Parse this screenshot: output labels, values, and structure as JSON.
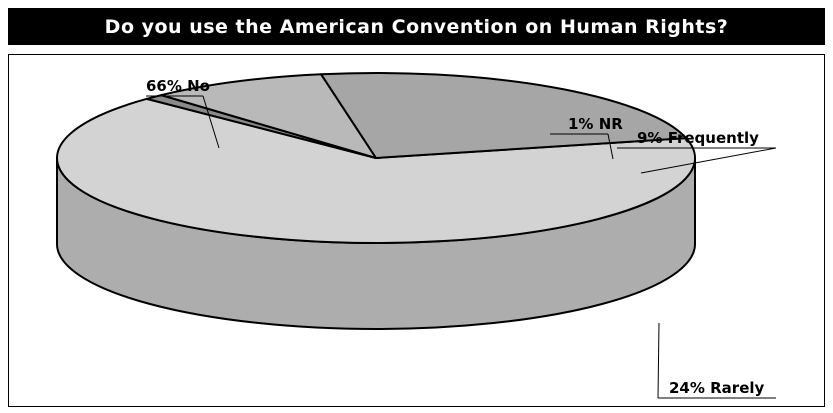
{
  "title": "Do you use the American Convention on Human Rights?",
  "chart_data": {
    "type": "pie",
    "style": "3d",
    "title": "Do you use the American Convention on Human Rights?",
    "slices": [
      {
        "key": "no",
        "label": "No",
        "value": 66,
        "display": "66% No",
        "color": "#d3d3d3"
      },
      {
        "key": "nr",
        "label": "NR",
        "value": 1,
        "display": "1% NR",
        "color": "#8a8a8a"
      },
      {
        "key": "frequently",
        "label": "Frequently",
        "value": 9,
        "display": "9% Frequently",
        "color": "#b9b9b9"
      },
      {
        "key": "rarely",
        "label": "Rarely",
        "value": 24,
        "display": "24% Rarely",
        "color": "#a6a6a6"
      }
    ],
    "unit": "%"
  }
}
